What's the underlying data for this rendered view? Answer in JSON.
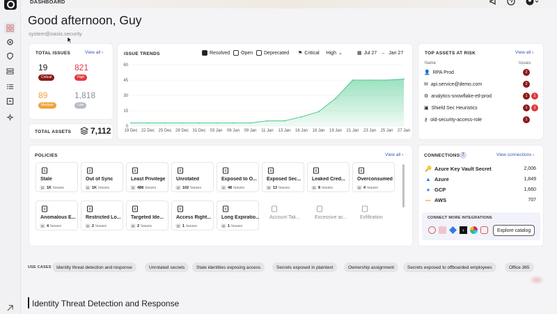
{
  "breadcrumb": "DASHBOARD",
  "greeting": "Good afternoon, Guy",
  "email": "system@oasis.security",
  "total_issues": {
    "title": "TOTAL ISSUES",
    "view_all": "View all",
    "critical": {
      "value": "19",
      "label": "Critical"
    },
    "high": {
      "value": "821",
      "label": "High"
    },
    "medium": {
      "value": "89",
      "label": "Medium"
    },
    "low": {
      "value": "1,818",
      "label": "Low"
    }
  },
  "total_assets": {
    "title": "TOTAL ASSETS",
    "value": "7,112"
  },
  "issue_trends": {
    "title": "ISSUE TRENDS",
    "resolved": "Resolved",
    "open": "Open",
    "deprecated": "Deprecated",
    "sev1": "Critical",
    "sev2": "High",
    "date_from": "Jul 27",
    "date_to": "Jan 27"
  },
  "chart_data": {
    "type": "area",
    "x": [
      "19 Dec",
      "22 Dec",
      "25 Dec",
      "28 Dec",
      "31 Dec",
      "03 Jan",
      "06 Jan",
      "09 Jan",
      "11 Jan",
      "13 Jan",
      "16 Jan",
      "18 Jan",
      "19 Jan",
      "21 Jan",
      "23 Jan",
      "25 Jan",
      "27 Jan"
    ],
    "values": [
      3,
      3,
      3,
      3,
      3,
      3,
      3,
      3,
      5,
      5,
      9,
      14,
      27,
      45,
      45,
      45,
      46
    ],
    "yticks": [
      "0",
      "15",
      "30",
      "45",
      "60"
    ],
    "ylim": [
      0,
      60
    ],
    "grid": true,
    "color": "#49c98a"
  },
  "top_assets": {
    "title": "TOP ASSETS AT RISK",
    "view_all": "View all",
    "col_name": "Name",
    "col_issues": "Issues",
    "rows": [
      {
        "name": "RPA Prod",
        "badges": [
          "2"
        ]
      },
      {
        "name": "api.service@demo.com",
        "badges": [
          "2"
        ]
      },
      {
        "name": "analytics-snowflake-etl-prod",
        "badges": [
          "1",
          "1"
        ]
      },
      {
        "name": "Shield Sec Heuristics",
        "badges": [
          "1",
          "1"
        ]
      },
      {
        "name": "old-security-access-role",
        "badges": [
          "1"
        ]
      }
    ]
  },
  "policies": {
    "title": "POLICIES",
    "view_all": "View all",
    "row1": [
      {
        "name": "Stale",
        "count": "1K",
        "unit": "Issues"
      },
      {
        "name": "Out of Sync",
        "count": "1K",
        "unit": "Issues"
      },
      {
        "name": "Least Privilege",
        "count": "488",
        "unit": "Issues"
      },
      {
        "name": "Unrotated",
        "count": "102",
        "unit": "Issues"
      },
      {
        "name": "Exposed to O...",
        "count": "48",
        "unit": "Issues"
      },
      {
        "name": "Exposed Sec...",
        "count": "13",
        "unit": "Issues"
      },
      {
        "name": "Leaked Cred...",
        "count": "8",
        "unit": "Issues"
      },
      {
        "name": "Overconsumed",
        "count": "4",
        "unit": "Issues"
      }
    ],
    "row2": [
      {
        "name": "Anomalous E...",
        "count": "4",
        "unit": "Issues"
      },
      {
        "name": "Restricted Lo...",
        "count": "2",
        "unit": "Issues"
      },
      {
        "name": "Targeted Ide...",
        "count": "2",
        "unit": "Issues"
      },
      {
        "name": "Access Right...",
        "count": "1",
        "unit": "Issues"
      },
      {
        "name": "Long Expiratio...",
        "count": "1",
        "unit": "Issues"
      }
    ],
    "disabled": [
      "Account Tak...",
      "Excessive ac...",
      "Exfiltration"
    ]
  },
  "connections": {
    "title": "CONNECTIONS",
    "count": "7",
    "view": "View connections",
    "rows": [
      {
        "name": "Azure Key Vault Secret",
        "value": "2,006"
      },
      {
        "name": "Azure",
        "value": "1,849"
      },
      {
        "name": "GCP",
        "value": "1,660"
      },
      {
        "name": "AWS",
        "value": "707"
      }
    ],
    "more": "CONNECT MORE INTEGRATIONS",
    "explore": "Explore catalog"
  },
  "use_cases": {
    "label": "USE CASES",
    "items": [
      "Identity threat detection and response",
      "Unrotated secrets",
      "Stale identities exposing access",
      "Secrets exposed in plaintext",
      "Ownership assignment",
      "Secrets exposed to offboarded employees",
      "Office 365"
    ]
  },
  "section_title": "Identity Threat Detection and Response",
  "colors": {
    "critical": "#8b1a1a",
    "high": "#e0393e",
    "medium": "#f0a33a",
    "low": "#b6bcc6",
    "chart": "#49c98a",
    "link": "#3a55b9"
  }
}
